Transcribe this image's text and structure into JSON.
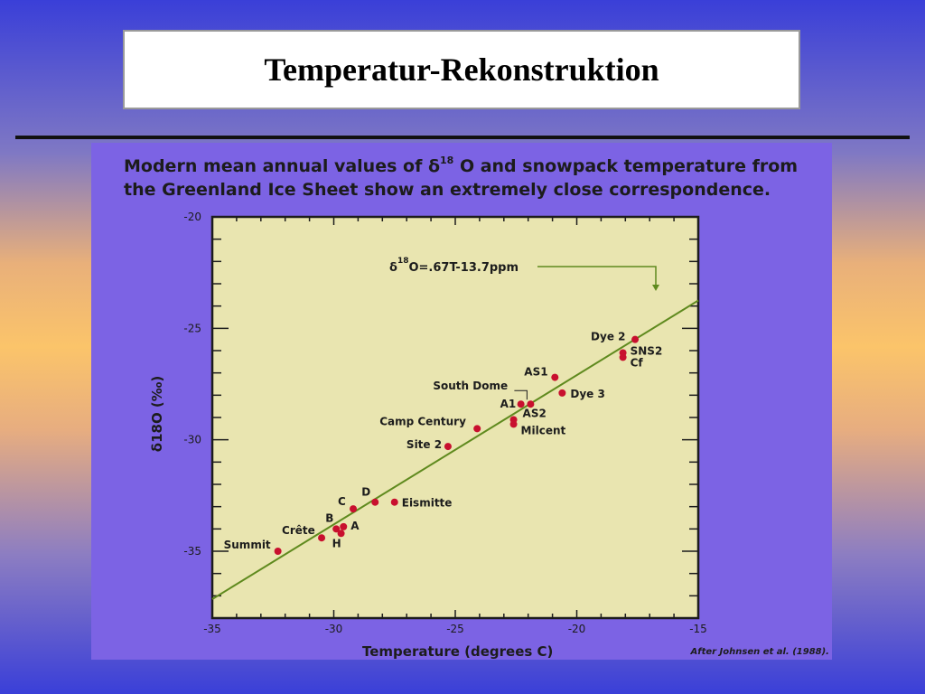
{
  "page_title": "Temperatur-Rekonstruktion",
  "caption": {
    "line1_pre": "Modern mean annual values of ",
    "line1_post": " O and snowpack temperature from",
    "line2": "the Greenland Ice Sheet show an extremely close correspondence.",
    "delta": "δ",
    "sup": "18"
  },
  "credit": "After Johnsen et al. (1988).",
  "colors": {
    "slide_bg": "#7c63e4",
    "plot_bg": "#e9e5b0",
    "point": "#c8102e",
    "line": "#5f8a1e",
    "frame": "#1c1c1c"
  },
  "chart_data": {
    "type": "scatter",
    "xlabel": "Temperature (degrees C)",
    "ylabel": "δ18O (‰)",
    "xlim": [
      -35,
      -15
    ],
    "ylim": [
      -38,
      -20
    ],
    "x_ticks": [
      -35,
      -30,
      -25,
      -20,
      -15
    ],
    "y_ticks": [
      -20,
      -25,
      -30,
      -35
    ],
    "grid": false,
    "regression": {
      "label": "δ18O=.67T-13.7ppm",
      "slope": 0.67,
      "intercept": -13.7
    },
    "points": [
      {
        "name": "Summit",
        "x": -32.3,
        "y": -35.0
      },
      {
        "name": "Crête",
        "x": -30.5,
        "y": -34.4
      },
      {
        "name": "B",
        "x": -29.9,
        "y": -34.0
      },
      {
        "name": "H",
        "x": -29.7,
        "y": -34.2
      },
      {
        "name": "A",
        "x": -29.6,
        "y": -33.9
      },
      {
        "name": "C",
        "x": -29.2,
        "y": -33.1
      },
      {
        "name": "D",
        "x": -28.3,
        "y": -32.8
      },
      {
        "name": "Eismitte",
        "x": -27.5,
        "y": -32.8
      },
      {
        "name": "Site 2",
        "x": -25.3,
        "y": -30.3
      },
      {
        "name": "Camp Century",
        "x": -24.1,
        "y": -29.5
      },
      {
        "name": "AS2",
        "x": -22.6,
        "y": -29.1
      },
      {
        "name": "Milcent",
        "x": -22.6,
        "y": -29.3
      },
      {
        "name": "A1",
        "x": -22.3,
        "y": -28.4
      },
      {
        "name": "South Dome",
        "x": -21.9,
        "y": -28.4
      },
      {
        "name": "AS1",
        "x": -20.9,
        "y": -27.2
      },
      {
        "name": "Dye 3",
        "x": -20.6,
        "y": -27.9
      },
      {
        "name": "SNS2",
        "x": -18.1,
        "y": -26.1
      },
      {
        "name": "Cf",
        "x": -18.1,
        "y": -26.3
      },
      {
        "name": "Dye 2",
        "x": -17.6,
        "y": -25.5
      }
    ]
  }
}
